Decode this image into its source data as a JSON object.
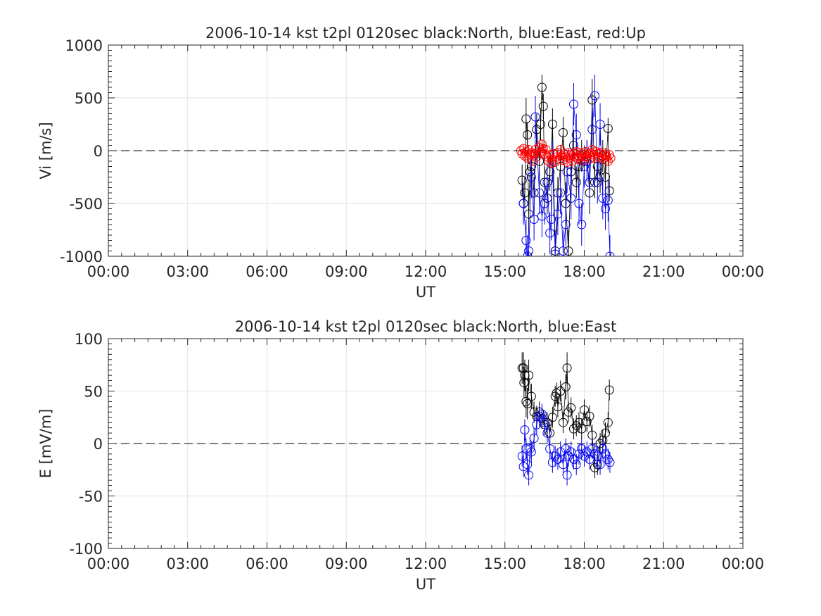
{
  "chart_data": [
    {
      "type": "scatter",
      "title": "2006-10-14 kst t2pl 0120sec black:North, blue:East, red:Up",
      "xlabel": "UT",
      "ylabel": "Vi [m/s]",
      "xlim": [
        0,
        24
      ],
      "ylim": [
        -1000,
        1000
      ],
      "x_unit": "hours UT",
      "xticks": [
        0,
        3,
        6,
        9,
        12,
        15,
        18,
        21,
        24
      ],
      "xtick_labels": [
        "00:00",
        "03:00",
        "06:00",
        "09:00",
        "12:00",
        "15:00",
        "18:00",
        "21:00",
        "00:00"
      ],
      "yticks": [
        -1000,
        -500,
        0,
        500,
        1000
      ],
      "ytick_labels": [
        "-1000",
        "-500",
        "0",
        "500",
        "1000"
      ],
      "grid": true,
      "reference_line": 0,
      "series": [
        {
          "color": "#000000",
          "x": [
            15.65,
            15.7,
            15.75,
            15.8,
            15.85,
            15.9,
            15.95,
            16.0,
            16.1,
            16.2,
            16.3,
            16.35,
            16.4,
            16.45,
            16.5,
            16.6,
            16.7,
            16.8,
            16.9,
            17.0,
            17.1,
            17.2,
            17.3,
            17.4,
            17.5,
            17.6,
            17.7,
            17.8,
            17.9,
            18.0,
            18.1,
            18.2,
            18.3,
            18.4,
            18.5,
            18.6,
            18.7,
            18.8,
            18.9,
            18.95
          ],
          "y": [
            -280,
            -500,
            -400,
            300,
            150,
            -600,
            -200,
            -150,
            -400,
            200,
            -100,
            250,
            600,
            420,
            -300,
            -450,
            -200,
            250,
            -950,
            -400,
            -150,
            170,
            -500,
            -950,
            -200,
            50,
            -300,
            -150,
            -50,
            -100,
            -50,
            -400,
            480,
            -300,
            -150,
            -250,
            -50,
            -250,
            210,
            -380
          ],
          "err": [
            150,
            180,
            150,
            200,
            120,
            200,
            150,
            150,
            150,
            150,
            150,
            150,
            120,
            120,
            150,
            150,
            180,
            150,
            200,
            150,
            150,
            150,
            200,
            200,
            150,
            150,
            150,
            150,
            150,
            150,
            150,
            200,
            200,
            150,
            150,
            150,
            150,
            150,
            100,
            100
          ]
        },
        {
          "color": "#0000ee",
          "x": [
            15.7,
            15.8,
            15.85,
            15.9,
            16.0,
            16.1,
            16.15,
            16.3,
            16.4,
            16.5,
            16.6,
            16.7,
            16.75,
            16.8,
            16.9,
            17.0,
            17.1,
            17.2,
            17.3,
            17.35,
            17.5,
            17.6,
            17.7,
            17.8,
            17.9,
            18.0,
            18.1,
            18.2,
            18.3,
            18.4,
            18.5,
            18.6,
            18.7,
            18.8,
            18.9,
            18.97
          ],
          "y": [
            -500,
            -850,
            -1000,
            -950,
            -250,
            -650,
            320,
            -400,
            -620,
            -500,
            -300,
            -780,
            -650,
            -100,
            -980,
            -600,
            -400,
            -950,
            -700,
            -200,
            -450,
            440,
            150,
            -500,
            -700,
            -150,
            -100,
            -300,
            200,
            520,
            -300,
            250,
            -450,
            -550,
            -470,
            -1000
          ],
          "err": [
            200,
            200,
            200,
            200,
            200,
            200,
            200,
            200,
            200,
            200,
            200,
            200,
            200,
            200,
            200,
            200,
            200,
            200,
            200,
            200,
            200,
            200,
            200,
            200,
            200,
            200,
            200,
            200,
            200,
            200,
            200,
            200,
            200,
            200,
            200,
            200
          ]
        },
        {
          "color": "#ff0000",
          "x": [
            15.6,
            15.65,
            15.7,
            15.75,
            15.8,
            15.85,
            15.9,
            15.95,
            16.0,
            16.05,
            16.1,
            16.15,
            16.2,
            16.25,
            16.3,
            16.35,
            16.4,
            16.45,
            16.5,
            16.55,
            16.6,
            16.65,
            16.7,
            16.75,
            16.8,
            16.85,
            16.9,
            16.95,
            17.0,
            17.05,
            17.1,
            17.15,
            17.2,
            17.25,
            17.3,
            17.35,
            17.4,
            17.45,
            17.5,
            17.55,
            17.6,
            17.65,
            17.7,
            17.75,
            17.8,
            17.85,
            17.9,
            17.95,
            18.0,
            18.05,
            18.1,
            18.15,
            18.2,
            18.25,
            18.3,
            18.35,
            18.4,
            18.45,
            18.5,
            18.55,
            18.6,
            18.65,
            18.7,
            18.75,
            18.8,
            18.85,
            18.9,
            18.95,
            19.0
          ],
          "y": [
            0,
            -30,
            20,
            -50,
            -10,
            -70,
            10,
            -40,
            -20,
            -100,
            -30,
            10,
            -60,
            -20,
            30,
            -10,
            60,
            20,
            -30,
            10,
            -60,
            -100,
            -40,
            -120,
            -80,
            -30,
            -110,
            -60,
            -20,
            -80,
            10,
            -50,
            -90,
            -30,
            -60,
            -110,
            -20,
            -70,
            -40,
            -100,
            -30,
            -60,
            -10,
            -80,
            -50,
            -20,
            -60,
            -90,
            -40,
            -10,
            -60,
            -30,
            -80,
            -20,
            10,
            -40,
            -70,
            -10,
            -30,
            -60,
            -20,
            -50,
            -80,
            -40,
            -20,
            -60,
            -100,
            -40,
            -70
          ],
          "err": [
            40,
            40,
            40,
            40,
            40,
            40,
            40,
            40,
            40,
            40,
            40,
            40,
            40,
            40,
            40,
            40,
            40,
            40,
            40,
            40,
            40,
            40,
            40,
            40,
            40,
            40,
            40,
            40,
            40,
            40,
            40,
            40,
            40,
            40,
            40,
            40,
            40,
            40,
            40,
            40,
            40,
            40,
            40,
            40,
            40,
            40,
            40,
            40,
            40,
            40,
            40,
            40,
            40,
            40,
            40,
            40,
            40,
            40,
            40,
            40,
            40,
            40,
            40,
            40,
            40,
            40,
            40,
            40,
            40
          ]
        }
      ]
    },
    {
      "type": "scatter",
      "title": "2006-10-14 kst t2pl 0120sec black:North, blue:East",
      "xlabel": "UT",
      "ylabel": "E [mV/m]",
      "xlim": [
        0,
        24
      ],
      "ylim": [
        -100,
        100
      ],
      "x_unit": "hours UT",
      "xticks": [
        0,
        3,
        6,
        9,
        12,
        15,
        18,
        21,
        24
      ],
      "xtick_labels": [
        "00:00",
        "03:00",
        "06:00",
        "09:00",
        "12:00",
        "15:00",
        "18:00",
        "21:00",
        "00:00"
      ],
      "yticks": [
        -100,
        -50,
        0,
        50,
        100
      ],
      "ytick_labels": [
        "-100",
        "-50",
        "0",
        "50",
        "100"
      ],
      "grid": true,
      "reference_line": 0,
      "series": [
        {
          "color": "#000000",
          "x": [
            15.65,
            15.7,
            15.72,
            15.75,
            15.8,
            15.85,
            15.9,
            16.0,
            16.1,
            16.2,
            16.3,
            16.4,
            16.5,
            16.6,
            16.7,
            16.8,
            16.9,
            16.95,
            17.0,
            17.1,
            17.2,
            17.3,
            17.35,
            17.4,
            17.5,
            17.6,
            17.7,
            17.8,
            17.9,
            18.0,
            18.1,
            18.2,
            18.3,
            18.4,
            18.5,
            18.6,
            18.7,
            18.8,
            18.9,
            18.95
          ],
          "y": [
            72,
            72,
            58,
            65,
            40,
            38,
            65,
            45,
            30,
            26,
            30,
            24,
            18,
            20,
            10,
            25,
            45,
            48,
            35,
            50,
            20,
            54,
            72,
            30,
            34,
            14,
            17,
            20,
            14,
            32,
            21,
            26,
            8,
            -23,
            -20,
            0,
            3,
            10,
            20,
            51
          ],
          "err": [
            15,
            15,
            15,
            15,
            15,
            15,
            15,
            12,
            10,
            10,
            10,
            10,
            10,
            10,
            10,
            10,
            10,
            10,
            10,
            10,
            10,
            12,
            15,
            10,
            10,
            10,
            10,
            10,
            10,
            10,
            10,
            10,
            10,
            10,
            10,
            10,
            10,
            10,
            10,
            10
          ]
        },
        {
          "color": "#0000ee",
          "x": [
            15.65,
            15.7,
            15.75,
            15.8,
            15.85,
            15.9,
            15.95,
            16.0,
            16.1,
            16.2,
            16.3,
            16.4,
            16.5,
            16.6,
            16.7,
            16.8,
            16.9,
            17.0,
            17.1,
            17.2,
            17.3,
            17.35,
            17.4,
            17.5,
            17.6,
            17.7,
            17.8,
            17.9,
            18.0,
            18.1,
            18.2,
            18.3,
            18.4,
            18.5,
            18.6,
            18.7,
            18.8,
            18.9,
            18.97
          ],
          "y": [
            -12,
            -22,
            13,
            -5,
            -20,
            -30,
            -5,
            -8,
            5,
            18,
            26,
            28,
            20,
            10,
            -5,
            -18,
            -12,
            -15,
            -8,
            -20,
            -5,
            -30,
            -12,
            -8,
            -15,
            -20,
            -10,
            -5,
            -12,
            -8,
            -15,
            -5,
            -10,
            -12,
            -20,
            -5,
            -10,
            -15,
            -18
          ],
          "err": [
            10,
            10,
            10,
            10,
            10,
            10,
            10,
            10,
            10,
            10,
            10,
            10,
            10,
            10,
            10,
            10,
            10,
            10,
            10,
            10,
            10,
            10,
            10,
            10,
            10,
            10,
            10,
            10,
            10,
            10,
            10,
            10,
            10,
            10,
            10,
            10,
            10,
            10,
            10
          ]
        }
      ]
    }
  ]
}
